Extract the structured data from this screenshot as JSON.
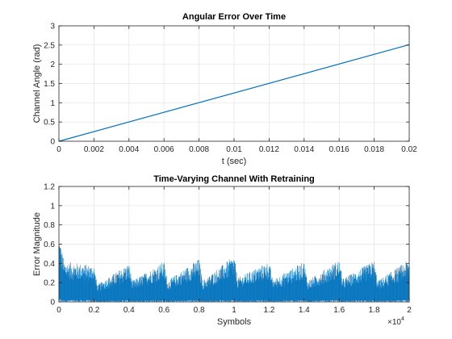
{
  "chart_data": [
    {
      "type": "line",
      "title": "Angular Error Over Time",
      "xlabel": "t (sec)",
      "ylabel": "Channel Angle  (rad)",
      "xlim": [
        0,
        0.02
      ],
      "ylim": [
        0,
        3
      ],
      "x_ticks": [
        "0",
        "0.002",
        "0.004",
        "0.006",
        "0.008",
        "0.01",
        "0.012",
        "0.014",
        "0.016",
        "0.018",
        "0.02"
      ],
      "y_ticks": [
        "0",
        "0.5",
        "1",
        "1.5",
        "2",
        "2.5",
        "3"
      ],
      "grid": true,
      "series": [
        {
          "x": [
            0,
            0.02
          ],
          "y": [
            0,
            2.51
          ],
          "color": "#0072BD"
        }
      ]
    },
    {
      "type": "line",
      "title": "Time-Varying Channel With Retraining",
      "xlabel": "Symbols",
      "ylabel": "Error Magnitude",
      "xlim": [
        0,
        20000
      ],
      "ylim": [
        0,
        1.2
      ],
      "x_ticks": [
        "0",
        "0.2",
        "0.4",
        "0.6",
        "0.8",
        "1",
        "1.2",
        "1.4",
        "1.6",
        "1.8",
        "2"
      ],
      "x_multiplier": {
        "base": "×10",
        "exp": "4"
      },
      "y_ticks": [
        "0",
        "0.2",
        "0.4",
        "0.6",
        "0.8",
        "1",
        "1.2"
      ],
      "grid": true,
      "color": "#0072BD",
      "retrain_period": 2000,
      "envelope_upper": [
        [
          0,
          0.7
        ],
        [
          300,
          0.42
        ],
        [
          2000,
          0.38
        ],
        [
          2200,
          0.18
        ],
        [
          4000,
          0.4
        ],
        [
          4200,
          0.22
        ],
        [
          6000,
          0.42
        ],
        [
          6200,
          0.22
        ],
        [
          8000,
          0.45
        ],
        [
          8200,
          0.22
        ],
        [
          10000,
          0.48
        ],
        [
          10200,
          0.25
        ],
        [
          12000,
          0.42
        ],
        [
          12200,
          0.23
        ],
        [
          14000,
          0.42
        ],
        [
          14200,
          0.22
        ],
        [
          16000,
          0.44
        ],
        [
          16200,
          0.24
        ],
        [
          18000,
          0.43
        ],
        [
          18200,
          0.22
        ],
        [
          20000,
          0.44
        ]
      ],
      "envelope_lower": 0.0
    }
  ]
}
